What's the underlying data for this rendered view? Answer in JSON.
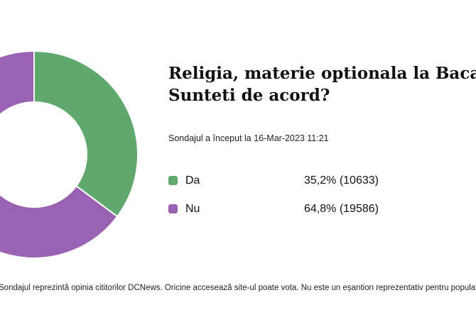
{
  "colors": {
    "da": "#5fa86e",
    "nu": "#9a62b3"
  },
  "chart_data": {
    "type": "pie",
    "title": "Religia, materie optionala la Bacalaureat. Sunteti de acord?",
    "title_lines": [
      "Religia, materie optionala la Bacalaureat.",
      "Sunteti de acord?"
    ],
    "categories": [
      "Da",
      "Nu"
    ],
    "values": [
      35.2,
      64.8
    ],
    "counts": [
      10633,
      19586
    ],
    "value_labels": [
      "35,2% (10633)",
      "64,8% (19586)"
    ],
    "legend_placement": "right"
  },
  "poll": {
    "started": "Sondajul a început la 16-Mar-2023 11:21",
    "footnote": "Sondajul reprezintă opinia cititorilor DCNews. Oricine accesează site-ul poate vota. Nu este un eșantion reprezentativ pentru populația României."
  }
}
